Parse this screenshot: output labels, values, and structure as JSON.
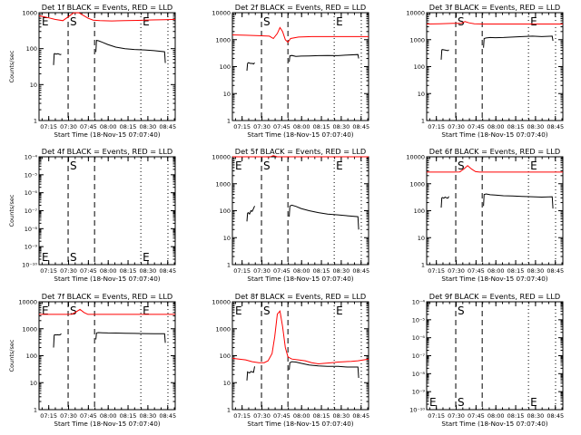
{
  "colors": {
    "events": "#000000",
    "lld": "#ff0000",
    "background": "#ffffff",
    "axes": "#000000"
  },
  "x_axis": {
    "label": "Start Time (18-Nov-15 07:07:40)",
    "ticks": [
      "07:15",
      "07:30",
      "07:45",
      "08:00",
      "08:15",
      "08:30",
      "08:45"
    ],
    "tick_minutes": [
      7.33,
      22.33,
      37.33,
      52.33,
      67.33,
      82.33,
      97.33
    ],
    "range_minutes": [
      0,
      103
    ]
  },
  "y_label": "Counts/sec",
  "markers": [
    {
      "label": "S",
      "minute": 22.0,
      "style": "dashed"
    },
    {
      "label": "",
      "minute": 42.0,
      "style": "dashed"
    },
    {
      "label": "E",
      "minute": 77.0,
      "style": "dotted"
    },
    {
      "label": "",
      "minute": 97.5,
      "style": "dotted"
    }
  ],
  "marker_labels": {
    "start": "E",
    "s": "S",
    "e": "E"
  },
  "chart_data": [
    {
      "type": "line",
      "title": "Det 1f BLACK = Events, RED = LLD",
      "xlabel": "Start Time (18-Nov-15 07:07:40)",
      "ylabel": "Counts/sec",
      "ylim": [
        1,
        1000
      ],
      "yscale": "log",
      "ytick_labels": [
        "1",
        "10",
        "100",
        "1000"
      ],
      "marker_labels_visible": [
        "E",
        "S",
        "E"
      ],
      "series": [
        {
          "name": "Events",
          "segments": [
            {
              "x": [
                11,
                11.5,
                12,
                13,
                14,
                15,
                16,
                16.8
              ],
              "y": [
                35,
                72,
                73,
                70,
                72,
                71,
                68,
                70
              ]
            },
            {
              "x": [
                43,
                43.5,
                45,
                48,
                52,
                58,
                65,
                72,
                80,
                87,
                95,
                95.5
              ],
              "y": [
                80,
                170,
                165,
                150,
                130,
                110,
                100,
                95,
                92,
                88,
                82,
                40
              ]
            }
          ]
        },
        {
          "name": "LLD",
          "segments": [
            {
              "x": [
                0,
                6,
                12,
                18,
                22,
                26,
                30,
                33,
                37,
                41,
                46,
                55,
                65,
                75,
                85,
                95,
                103
              ],
              "y": [
                820,
                740,
                650,
                600,
                760,
                980,
                1000,
                860,
                700,
                620,
                600,
                590,
                600,
                610,
                630,
                640,
                650
              ]
            }
          ]
        }
      ]
    },
    {
      "type": "line",
      "title": "Det 2f BLACK = Events, RED = LLD",
      "xlabel": "Start Time (18-Nov-15 07:07:40)",
      "ylabel": "",
      "ylim": [
        1,
        10000
      ],
      "yscale": "log",
      "ytick_labels": [
        "1",
        "10",
        "100",
        "1000",
        "10000"
      ],
      "marker_labels_visible": [
        "",
        "S",
        "E"
      ],
      "series": [
        {
          "name": "Events",
          "segments": [
            {
              "x": [
                11,
                11.5,
                12,
                13,
                14,
                15,
                16,
                16.8
              ],
              "y": [
                70,
                130,
                140,
                135,
                130,
                132,
                125,
                140
              ]
            },
            {
              "x": [
                43,
                43.5,
                45,
                48,
                52,
                58,
                65,
                72,
                80,
                87,
                95,
                95.5
              ],
              "y": [
                150,
                250,
                260,
                240,
                245,
                250,
                255,
                260,
                255,
                270,
                280,
                200
              ]
            }
          ]
        },
        {
          "name": "LLD",
          "segments": [
            {
              "x": [
                0,
                10,
                20,
                28,
                31,
                34,
                36,
                38,
                40,
                42,
                44,
                50,
                60,
                70,
                80,
                90,
                103
              ],
              "y": [
                1500,
                1450,
                1400,
                1350,
                1100,
                1700,
                2800,
                2000,
                1000,
                800,
                1100,
                1250,
                1300,
                1300,
                1300,
                1300,
                1300
              ]
            }
          ]
        }
      ]
    },
    {
      "type": "line",
      "title": "Det 3f BLACK = Events, RED = LLD",
      "xlabel": "Start Time (18-Nov-15 07:07:40)",
      "ylabel": "",
      "ylim": [
        1,
        10000
      ],
      "yscale": "log",
      "ytick_labels": [
        "1",
        "10",
        "100",
        "1000",
        "10000"
      ],
      "marker_labels_visible": [
        "",
        "S",
        "E"
      ],
      "series": [
        {
          "name": "Events",
          "segments": [
            {
              "x": [
                11,
                11.5,
                12,
                13,
                14,
                15,
                16,
                16.8
              ],
              "y": [
                180,
                420,
                430,
                420,
                410,
                400,
                390,
                420
              ]
            },
            {
              "x": [
                43,
                43.5,
                45,
                48,
                52,
                58,
                65,
                72,
                80,
                87,
                95,
                95.5
              ],
              "y": [
                500,
                1100,
                1150,
                1200,
                1180,
                1200,
                1250,
                1300,
                1350,
                1300,
                1350,
                900
              ]
            }
          ]
        },
        {
          "name": "LLD",
          "segments": [
            {
              "x": [
                0,
                10,
                20,
                26,
                29,
                32,
                36,
                42,
                50,
                60,
                70,
                80,
                90,
                103
              ],
              "y": [
                3800,
                3900,
                4000,
                4000,
                4700,
                4200,
                3900,
                3800,
                3800,
                3800,
                3800,
                3800,
                3800,
                3800
              ]
            }
          ]
        }
      ]
    },
    {
      "type": "line",
      "title": "Det 4f BLACK = Events, RED = LLD",
      "xlabel": "Start Time (18-Nov-15 07:07:40)",
      "ylabel": "Counts/sec",
      "ylim": [
        1e-10,
        0.0001
      ],
      "yscale": "log",
      "ytick_labels": [
        "10⁻¹⁰",
        "10⁻⁹",
        "10⁻⁸",
        "10⁻⁷",
        "10⁻⁶",
        "10⁻⁵",
        "10⁻⁴"
      ],
      "marker_labels_visible": [
        "E",
        "S",
        "E"
      ],
      "series": []
    },
    {
      "type": "line",
      "title": "Det 5f BLACK = Events, RED = LLD",
      "xlabel": "Start Time (18-Nov-15 07:07:40)",
      "ylabel": "",
      "ylim": [
        1,
        10000
      ],
      "yscale": "log",
      "ytick_labels": [
        "1",
        "10",
        "100",
        "1000",
        "10000"
      ],
      "marker_labels_visible": [
        "E",
        "S",
        "E"
      ],
      "series": [
        {
          "name": "Events",
          "segments": [
            {
              "x": [
                11,
                11.5,
                12,
                13,
                14,
                15,
                16,
                16.8
              ],
              "y": [
                40,
                80,
                85,
                75,
                100,
                95,
                120,
                150
              ]
            },
            {
              "x": [
                43,
                43.5,
                45,
                48,
                52,
                58,
                65,
                72,
                80,
                87,
                95,
                95.5
              ],
              "y": [
                60,
                150,
                160,
                145,
                120,
                100,
                85,
                75,
                70,
                65,
                60,
                20
              ]
            }
          ]
        },
        {
          "name": "LLD",
          "segments": [
            {
              "x": [
                0,
                10,
                20,
                25,
                28,
                31,
                34,
                40,
                50,
                60,
                70,
                80,
                90,
                103
              ],
              "y": [
                10000,
                10000,
                10000,
                10000,
                9800,
                11000,
                10000,
                10000,
                10000,
                10000,
                10000,
                10000,
                10000,
                10000
              ]
            }
          ]
        }
      ]
    },
    {
      "type": "line",
      "title": "Det 6f BLACK = Events, RED = LLD",
      "xlabel": "Start Time (18-Nov-15 07:07:40)",
      "ylabel": "",
      "ylim": [
        1,
        10000
      ],
      "yscale": "log",
      "ytick_labels": [
        "1",
        "10",
        "100",
        "1000",
        "10000"
      ],
      "marker_labels_visible": [
        "",
        "S",
        "E"
      ],
      "series": [
        {
          "name": "Events",
          "segments": [
            {
              "x": [
                11,
                11.5,
                12,
                13,
                14,
                15,
                16,
                16.8
              ],
              "y": [
                130,
                300,
                310,
                290,
                320,
                300,
                290,
                340
              ]
            },
            {
              "x": [
                43,
                43.5,
                45,
                48,
                52,
                58,
                65,
                72,
                80,
                87,
                95,
                95.5
              ],
              "y": [
                150,
                400,
                420,
                390,
                380,
                360,
                350,
                340,
                330,
                320,
                330,
                120
              ]
            }
          ]
        },
        {
          "name": "LLD",
          "segments": [
            {
              "x": [
                0,
                10,
                20,
                25,
                28,
                31,
                34,
                37,
                40,
                45,
                55,
                65,
                75,
                85,
                95,
                103
              ],
              "y": [
                2700,
                2700,
                2700,
                2750,
                3500,
                4700,
                3500,
                2800,
                2700,
                2700,
                2700,
                2700,
                2700,
                2700,
                2700,
                2700
              ]
            }
          ]
        }
      ]
    },
    {
      "type": "line",
      "title": "Det 7f BLACK = Events, RED = LLD",
      "xlabel": "Start Time (18-Nov-15 07:07:40)",
      "ylabel": "Counts/sec",
      "ylim": [
        1,
        10000
      ],
      "yscale": "log",
      "ytick_labels": [
        "1",
        "10",
        "100",
        "1000",
        "10000"
      ],
      "marker_labels_visible": [
        "E",
        "S",
        "E"
      ],
      "series": [
        {
          "name": "Events",
          "segments": [
            {
              "x": [
                11,
                11.5,
                12,
                13,
                14,
                15,
                16,
                16.8
              ],
              "y": [
                200,
                580,
                600,
                590,
                600,
                590,
                600,
                650
              ]
            },
            {
              "x": [
                43,
                43.5,
                45,
                48,
                52,
                58,
                65,
                72,
                80,
                87,
                95,
                95.5
              ],
              "y": [
                400,
                700,
                720,
                710,
                700,
                690,
                680,
                670,
                660,
                650,
                650,
                300
              ]
            }
          ]
        },
        {
          "name": "LLD",
          "segments": [
            {
              "x": [
                0,
                10,
                20,
                25,
                28,
                31,
                34,
                37,
                40,
                45,
                55,
                65,
                75,
                85,
                95,
                103
              ],
              "y": [
                3400,
                3400,
                3400,
                3450,
                4200,
                5200,
                4000,
                3400,
                3400,
                3400,
                3400,
                3400,
                3400,
                3400,
                3400,
                3400
              ]
            }
          ]
        }
      ]
    },
    {
      "type": "line",
      "title": "Det 8f BLACK = Events, RED = LLD",
      "xlabel": "Start Time (18-Nov-15 07:07:40)",
      "ylabel": "",
      "ylim": [
        1,
        10000
      ],
      "yscale": "log",
      "ytick_labels": [
        "1",
        "10",
        "100",
        "1000",
        "10000"
      ],
      "marker_labels_visible": [
        "E",
        "S",
        "E"
      ],
      "series": [
        {
          "name": "Events",
          "segments": [
            {
              "x": [
                11,
                11.5,
                12,
                13,
                14,
                15,
                16,
                16.8
              ],
              "y": [
                12,
                25,
                24,
                23,
                26,
                25,
                24,
                40
              ]
            },
            {
              "x": [
                43,
                43.5,
                45,
                48,
                52,
                58,
                65,
                72,
                80,
                87,
                95,
                95.5
              ],
              "y": [
                30,
                55,
                60,
                58,
                52,
                45,
                42,
                40,
                40,
                38,
                38,
                15
              ]
            }
          ]
        },
        {
          "name": "LLD",
          "segments": [
            {
              "x": [
                0,
                5,
                10,
                15,
                20,
                24,
                27,
                30,
                32,
                34,
                36,
                38,
                40,
                42,
                45,
                50,
                55,
                60,
                65,
                70,
                75,
                80,
                85,
                90,
                95,
                103
              ],
              "y": [
                80,
                75,
                70,
                60,
                55,
                55,
                65,
                120,
                500,
                3500,
                4500,
                1200,
                200,
                90,
                75,
                70,
                65,
                55,
                50,
                52,
                55,
                58,
                60,
                62,
                65,
                75
              ]
            }
          ]
        }
      ]
    },
    {
      "type": "line",
      "title": "Det 9f BLACK = Events, RED = LLD",
      "xlabel": "Start Time (18-Nov-15 07:07:40)",
      "ylabel": "",
      "ylim": [
        1e-10,
        0.0001
      ],
      "yscale": "log",
      "ytick_labels": [
        "10⁻¹⁰",
        "10⁻⁹",
        "10⁻⁸",
        "10⁻⁷",
        "10⁻⁶",
        "10⁻⁵",
        "10⁻⁴"
      ],
      "marker_labels_visible": [
        "E",
        "S",
        "E"
      ],
      "series": []
    }
  ]
}
